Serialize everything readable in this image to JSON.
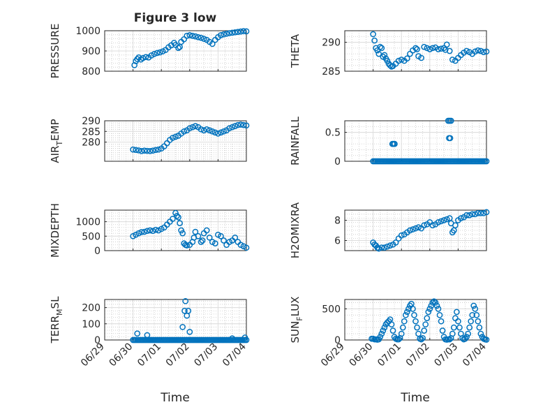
{
  "figure": {
    "title": "Figure 3 low"
  },
  "colors": {
    "marker": "#0072BD",
    "axis": "#262626",
    "grid": "#c8c8c8"
  },
  "x_axis": {
    "label": "Time",
    "ticks": [
      0,
      1,
      2,
      3,
      4,
      5
    ],
    "tick_labels": [
      "06/29",
      "06/30",
      "07/01",
      "07/02",
      "07/03",
      "07/04"
    ],
    "xlim": [
      0,
      5
    ]
  },
  "chart_data": [
    {
      "type": "scatter",
      "ylabel": "PRESSURE",
      "ylim": [
        800,
        1000
      ],
      "yticks": [
        800,
        900,
        1000
      ],
      "grid": true,
      "minor_grid": true,
      "x": [
        1.05,
        1.1,
        1.15,
        1.2,
        1.28,
        1.35,
        1.45,
        1.55,
        1.65,
        1.75,
        1.85,
        1.95,
        2.05,
        2.15,
        2.25,
        2.35,
        2.45,
        2.5,
        2.6,
        2.65,
        2.7,
        2.8,
        2.9,
        3.0,
        3.1,
        3.2,
        3.3,
        3.4,
        3.5,
        3.6,
        3.7,
        3.8,
        3.9,
        4.0,
        4.1,
        4.2,
        4.3,
        4.4,
        4.5,
        4.6,
        4.7,
        4.8,
        4.9,
        5.0
      ],
      "y": [
        830,
        850,
        860,
        868,
        858,
        865,
        870,
        868,
        878,
        885,
        890,
        893,
        898,
        905,
        918,
        928,
        940,
        930,
        915,
        920,
        945,
        958,
        975,
        978,
        975,
        972,
        968,
        965,
        960,
        955,
        945,
        935,
        955,
        968,
        978,
        982,
        985,
        988,
        990,
        992,
        994,
        996,
        998,
        997
      ]
    },
    {
      "type": "scatter",
      "ylabel": "THETA",
      "ylim": [
        285,
        292
      ],
      "yticks": [
        285,
        290
      ],
      "grid": true,
      "minor_grid": true,
      "x": [
        1.0,
        1.05,
        1.1,
        1.15,
        1.2,
        1.25,
        1.3,
        1.35,
        1.4,
        1.45,
        1.5,
        1.55,
        1.6,
        1.65,
        1.7,
        1.8,
        1.9,
        2.0,
        2.1,
        2.2,
        2.3,
        2.4,
        2.5,
        2.55,
        2.6,
        2.7,
        2.8,
        2.9,
        3.0,
        3.1,
        3.2,
        3.3,
        3.4,
        3.5,
        3.55,
        3.6,
        3.7,
        3.8,
        3.9,
        4.0,
        4.1,
        4.2,
        4.3,
        4.4,
        4.5,
        4.6,
        4.7,
        4.8,
        4.9,
        5.0
      ],
      "y": [
        291.4,
        290.3,
        289.0,
        288.6,
        288.0,
        289.2,
        289.0,
        287.5,
        287.8,
        287.2,
        286.8,
        286.3,
        286.0,
        285.8,
        285.9,
        286.3,
        286.8,
        287.0,
        286.8,
        287.2,
        288.0,
        288.6,
        289.0,
        288.8,
        287.6,
        287.3,
        289.2,
        289.0,
        288.8,
        289.0,
        289.1,
        288.8,
        288.9,
        289.0,
        288.7,
        289.6,
        288.5,
        287.0,
        286.8,
        287.3,
        287.8,
        288.2,
        288.5,
        288.3,
        288.0,
        288.4,
        288.6,
        288.5,
        288.3,
        288.4
      ]
    },
    {
      "type": "scatter",
      "ylabel": "AIR_TEMP",
      "ylim": [
        271,
        290
      ],
      "yticks": [
        280,
        285,
        290
      ],
      "grid": true,
      "minor_grid": true,
      "x": [
        1.0,
        1.1,
        1.2,
        1.3,
        1.4,
        1.5,
        1.6,
        1.7,
        1.8,
        1.9,
        2.0,
        2.1,
        2.2,
        2.3,
        2.4,
        2.5,
        2.6,
        2.7,
        2.8,
        2.9,
        3.0,
        3.1,
        3.2,
        3.3,
        3.4,
        3.5,
        3.6,
        3.7,
        3.8,
        3.9,
        4.0,
        4.1,
        4.2,
        4.3,
        4.4,
        4.5,
        4.6,
        4.7,
        4.8,
        4.9,
        5.0
      ],
      "y": [
        276.5,
        276.3,
        276.1,
        275.8,
        276.0,
        275.9,
        275.8,
        276.0,
        276.3,
        276.5,
        277.0,
        278.0,
        279.5,
        281.0,
        282.0,
        282.5,
        283.0,
        284.0,
        285.0,
        285.5,
        286.5,
        287.0,
        287.5,
        287.0,
        286.0,
        285.5,
        286.0,
        285.5,
        285.0,
        284.5,
        284.0,
        284.5,
        285.0,
        285.5,
        286.5,
        287.0,
        287.5,
        288.0,
        288.2,
        288.0,
        287.8
      ]
    },
    {
      "type": "scatter",
      "ylabel": "RAINFALL",
      "ylim": [
        0,
        0.7
      ],
      "yticks": [
        0,
        0.5
      ],
      "grid": true,
      "minor_grid": true,
      "x": [
        1.0,
        1.05,
        1.1,
        1.15,
        1.2,
        1.25,
        1.3,
        1.35,
        1.4,
        1.45,
        1.5,
        1.55,
        1.6,
        1.65,
        1.7,
        1.75,
        1.8,
        1.85,
        1.9,
        1.95,
        2.0,
        2.05,
        2.1,
        2.15,
        2.2,
        2.25,
        2.3,
        2.35,
        2.4,
        2.45,
        2.5,
        2.55,
        2.6,
        2.65,
        2.7,
        2.75,
        2.8,
        2.85,
        2.9,
        2.95,
        3.0,
        3.05,
        3.1,
        3.15,
        3.2,
        3.25,
        3.3,
        3.35,
        3.4,
        3.45,
        3.5,
        3.55,
        3.6,
        3.65,
        3.7,
        3.75,
        3.8,
        3.85,
        3.9,
        3.95,
        4.0,
        4.05,
        4.1,
        4.15,
        4.2,
        4.25,
        4.3,
        4.35,
        4.4,
        4.45,
        4.5,
        4.55,
        4.6,
        4.65,
        4.7,
        4.75,
        4.8,
        4.85,
        4.9,
        4.95,
        5.0,
        1.68,
        1.72,
        1.76,
        3.65,
        3.7,
        3.75,
        3.68,
        3.72
      ],
      "y": [
        0,
        0,
        0,
        0,
        0,
        0,
        0,
        0,
        0,
        0,
        0,
        0,
        0,
        0,
        0,
        0,
        0,
        0,
        0,
        0,
        0,
        0,
        0,
        0,
        0,
        0,
        0,
        0,
        0,
        0,
        0,
        0,
        0,
        0,
        0,
        0,
        0,
        0,
        0,
        0,
        0,
        0,
        0,
        0,
        0,
        0,
        0,
        0,
        0,
        0,
        0,
        0,
        0,
        0,
        0,
        0,
        0,
        0,
        0,
        0,
        0,
        0,
        0,
        0,
        0,
        0,
        0,
        0,
        0,
        0,
        0,
        0,
        0,
        0,
        0,
        0,
        0,
        0,
        0,
        0,
        0,
        0.3,
        0.3,
        0.3,
        0.7,
        0.7,
        0.7,
        0.4,
        0.4
      ]
    },
    {
      "type": "scatter",
      "ylabel": "MIXDEPTH",
      "ylim": [
        0,
        1400
      ],
      "yticks": [
        0,
        500,
        1000
      ],
      "grid": true,
      "minor_grid": true,
      "x": [
        1.0,
        1.1,
        1.2,
        1.3,
        1.4,
        1.5,
        1.6,
        1.7,
        1.8,
        1.9,
        2.0,
        2.1,
        2.2,
        2.3,
        2.4,
        2.5,
        2.55,
        2.6,
        2.65,
        2.7,
        2.75,
        2.8,
        2.85,
        2.9,
        3.0,
        3.1,
        3.15,
        3.2,
        3.3,
        3.4,
        3.45,
        3.5,
        3.6,
        3.7,
        3.8,
        3.9,
        4.0,
        4.1,
        4.2,
        4.3,
        4.4,
        4.5,
        4.6,
        4.7,
        4.8,
        4.9,
        5.0
      ],
      "y": [
        500,
        550,
        600,
        640,
        650,
        680,
        700,
        680,
        720,
        700,
        750,
        800,
        900,
        1000,
        1100,
        1300,
        1200,
        1150,
        950,
        700,
        600,
        250,
        200,
        180,
        200,
        300,
        450,
        650,
        500,
        300,
        350,
        600,
        700,
        450,
        300,
        250,
        550,
        500,
        350,
        200,
        300,
        350,
        450,
        300,
        200,
        150,
        100
      ]
    },
    {
      "type": "scatter",
      "ylabel": "H2OMIXRA",
      "ylim": [
        5,
        9
      ],
      "yticks": [
        6,
        8
      ],
      "grid": true,
      "minor_grid": true,
      "x": [
        1.0,
        1.05,
        1.1,
        1.15,
        1.2,
        1.3,
        1.4,
        1.5,
        1.6,
        1.7,
        1.8,
        1.9,
        2.0,
        2.1,
        2.2,
        2.3,
        2.4,
        2.5,
        2.6,
        2.7,
        2.8,
        2.9,
        3.0,
        3.1,
        3.2,
        3.3,
        3.4,
        3.5,
        3.6,
        3.7,
        3.75,
        3.8,
        3.85,
        3.9,
        4.0,
        4.1,
        4.2,
        4.3,
        4.4,
        4.5,
        4.6,
        4.7,
        4.8,
        4.9,
        5.0
      ],
      "y": [
        5.8,
        5.6,
        5.5,
        5.3,
        5.2,
        5.3,
        5.3,
        5.4,
        5.5,
        5.6,
        5.8,
        6.2,
        6.5,
        6.6,
        6.8,
        7.0,
        7.1,
        7.2,
        7.3,
        7.2,
        7.5,
        7.6,
        7.8,
        7.5,
        7.6,
        7.8,
        7.9,
        8.0,
        8.1,
        8.2,
        7.7,
        6.8,
        7.0,
        7.5,
        8.0,
        8.2,
        8.3,
        8.5,
        8.5,
        8.6,
        8.6,
        8.7,
        8.7,
        8.7,
        8.8
      ]
    },
    {
      "type": "scatter",
      "ylabel": "TERR_MSL",
      "ylim": [
        0,
        250
      ],
      "yticks": [
        0,
        100,
        200
      ],
      "grid": true,
      "minor_grid": true,
      "x": [
        1.0,
        1.05,
        1.1,
        1.15,
        1.2,
        1.25,
        1.3,
        1.35,
        1.4,
        1.45,
        1.5,
        1.55,
        1.6,
        1.65,
        1.7,
        1.75,
        1.8,
        1.85,
        1.9,
        1.95,
        2.0,
        2.05,
        2.1,
        2.15,
        2.2,
        2.25,
        2.3,
        2.35,
        2.4,
        2.45,
        2.5,
        2.55,
        2.6,
        2.65,
        2.7,
        2.75,
        2.8,
        2.85,
        2.9,
        2.95,
        3.0,
        3.05,
        3.1,
        3.15,
        3.2,
        3.25,
        3.3,
        3.35,
        3.4,
        3.45,
        3.5,
        3.55,
        3.6,
        3.65,
        3.7,
        3.75,
        3.8,
        3.85,
        3.9,
        3.95,
        4.0,
        4.05,
        4.1,
        4.15,
        4.2,
        4.25,
        4.3,
        4.35,
        4.4,
        4.45,
        4.5,
        4.55,
        4.6,
        4.65,
        4.7,
        4.75,
        4.8,
        4.85,
        4.9,
        4.95,
        5.0,
        1.15,
        1.5,
        2.75,
        2.82,
        2.85,
        2.9,
        2.95,
        3.0,
        4.5,
        4.95
      ],
      "y": [
        0,
        0,
        0,
        0,
        0,
        0,
        0,
        0,
        0,
        0,
        0,
        0,
        0,
        0,
        0,
        0,
        0,
        0,
        0,
        0,
        0,
        0,
        0,
        0,
        0,
        0,
        0,
        0,
        0,
        0,
        0,
        0,
        0,
        0,
        0,
        0,
        0,
        0,
        0,
        0,
        0,
        0,
        0,
        0,
        0,
        0,
        0,
        0,
        0,
        0,
        0,
        0,
        0,
        0,
        0,
        0,
        0,
        0,
        0,
        0,
        0,
        0,
        0,
        0,
        0,
        0,
        0,
        0,
        0,
        0,
        0,
        0,
        0,
        0,
        0,
        0,
        0,
        0,
        0,
        0,
        0,
        40,
        30,
        80,
        180,
        240,
        150,
        180,
        50,
        10,
        15
      ]
    },
    {
      "type": "scatter",
      "ylabel": "SUN_FLUX",
      "ylim": [
        0,
        650
      ],
      "yticks": [
        0,
        500
      ],
      "grid": true,
      "minor_grid": true,
      "x": [
        0.95,
        1.0,
        1.05,
        1.1,
        1.15,
        1.2,
        1.25,
        1.3,
        1.35,
        1.4,
        1.45,
        1.5,
        1.55,
        1.6,
        1.65,
        1.7,
        1.75,
        1.8,
        1.85,
        1.9,
        1.95,
        2.0,
        2.05,
        2.1,
        2.15,
        2.2,
        2.25,
        2.3,
        2.35,
        2.4,
        2.45,
        2.5,
        2.55,
        2.6,
        2.65,
        2.7,
        2.75,
        2.8,
        2.85,
        2.9,
        2.95,
        3.0,
        3.05,
        3.1,
        3.15,
        3.2,
        3.25,
        3.3,
        3.35,
        3.4,
        3.45,
        3.5,
        3.55,
        3.6,
        3.65,
        3.7,
        3.75,
        3.8,
        3.85,
        3.9,
        3.95,
        4.0,
        4.05,
        4.1,
        4.15,
        4.2,
        4.25,
        4.3,
        4.35,
        4.4,
        4.45,
        4.5,
        4.55,
        4.6,
        4.65,
        4.7,
        4.75,
        4.8,
        4.85,
        4.9,
        4.95,
        5.0
      ],
      "y": [
        20,
        20,
        10,
        10,
        5,
        10,
        50,
        100,
        150,
        200,
        250,
        280,
        300,
        330,
        250,
        150,
        50,
        20,
        10,
        10,
        30,
        100,
        200,
        300,
        400,
        450,
        500,
        550,
        580,
        500,
        400,
        300,
        200,
        100,
        20,
        10,
        30,
        150,
        250,
        350,
        450,
        500,
        550,
        600,
        620,
        600,
        550,
        500,
        400,
        300,
        150,
        50,
        10,
        5,
        10,
        10,
        30,
        100,
        200,
        350,
        450,
        300,
        200,
        100,
        30,
        10,
        20,
        50,
        100,
        200,
        300,
        400,
        550,
        500,
        400,
        300,
        200,
        100,
        50,
        20,
        10,
        5
      ]
    }
  ]
}
